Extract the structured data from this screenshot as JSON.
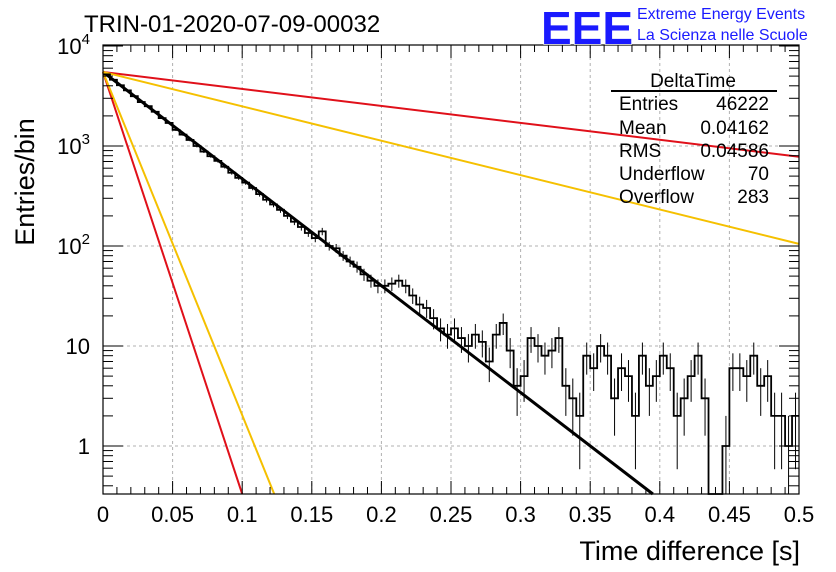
{
  "chart_data": {
    "type": "histogram",
    "title": "TRIN-01-2020-07-09-00032",
    "xlabel": "Time difference [s]",
    "ylabel": "Entries/bin",
    "xlim": [
      0,
      0.5
    ],
    "ylim": [
      0.3,
      10000
    ],
    "log_y": true,
    "grid": true,
    "x_ticks": [
      "0",
      "0.05",
      "0.1",
      "0.15",
      "0.2",
      "0.25",
      "0.3",
      "0.35",
      "0.4",
      "0.45",
      "0.5"
    ],
    "y_ticks": [
      {
        "value": 1,
        "base": "1",
        "exp": ""
      },
      {
        "value": 10,
        "base": "10",
        "exp": ""
      },
      {
        "value": 100,
        "base": "10",
        "exp": "2"
      },
      {
        "value": 1000,
        "base": "10",
        "exp": "3"
      },
      {
        "value": 10000,
        "base": "10",
        "exp": "4"
      }
    ],
    "bin_width": 0.005,
    "histogram_values": [
      5200,
      4600,
      4050,
      3600,
      3150,
      2750,
      2500,
      2200,
      1900,
      1700,
      1450,
      1300,
      1150,
      1000,
      880,
      790,
      710,
      620,
      540,
      480,
      430,
      380,
      330,
      290,
      260,
      230,
      200,
      175,
      155,
      135,
      120,
      140,
      100,
      95,
      80,
      70,
      62,
      52,
      45,
      40,
      40,
      42,
      45,
      40,
      32,
      26,
      24,
      19,
      15,
      13,
      15,
      12,
      10,
      13,
      11,
      7,
      13,
      17,
      9,
      4,
      5,
      12,
      10,
      8,
      9,
      12,
      4,
      3,
      2,
      8,
      6,
      10,
      8,
      3,
      6,
      5,
      2,
      8,
      4,
      5,
      8,
      6,
      2,
      3,
      5,
      8,
      3,
      0,
      0,
      1,
      6,
      6,
      5,
      8,
      4,
      5,
      2,
      2,
      1,
      2
    ],
    "fit_lines": [
      {
        "color": "#000000",
        "y0": 5500,
        "x1": 0.395,
        "y1": 0.3
      },
      {
        "color": "#e0101a",
        "y0": 5500,
        "x1": 0.5,
        "y1": 780
      },
      {
        "color": "#f5c000",
        "y0": 5500,
        "x1": 0.5,
        "y1": 105
      },
      {
        "color": "#e0101a",
        "y0": 5500,
        "x1": 0.1,
        "y1": 0.3
      },
      {
        "color": "#f5c000",
        "y0": 5500,
        "x1": 0.123,
        "y1": 0.3
      }
    ],
    "stats_box": {
      "title": "DeltaTime",
      "rows": [
        {
          "label": "Entries",
          "value": "46222"
        },
        {
          "label": "Mean",
          "value": "0.04162"
        },
        {
          "label": "RMS",
          "value": "0.04586"
        },
        {
          "label": "Underflow",
          "value": "70"
        },
        {
          "label": "Overflow",
          "value": "283"
        }
      ]
    }
  },
  "logo": {
    "text": "EEE",
    "line1": "Extreme Energy Events",
    "line2": "La Scienza nelle Scuole",
    "color": "#1a1aff"
  }
}
